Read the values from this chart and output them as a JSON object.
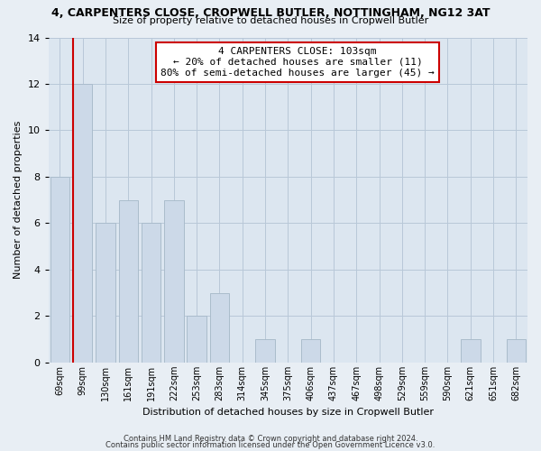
{
  "title": "4, CARPENTERS CLOSE, CROPWELL BUTLER, NOTTINGHAM, NG12 3AT",
  "subtitle": "Size of property relative to detached houses in Cropwell Butler",
  "xlabel": "Distribution of detached houses by size in Cropwell Butler",
  "ylabel": "Number of detached properties",
  "footer_line1": "Contains HM Land Registry data © Crown copyright and database right 2024.",
  "footer_line2": "Contains public sector information licensed under the Open Government Licence v3.0.",
  "bar_labels": [
    "69sqm",
    "99sqm",
    "130sqm",
    "161sqm",
    "191sqm",
    "222sqm",
    "253sqm",
    "283sqm",
    "314sqm",
    "345sqm",
    "375sqm",
    "406sqm",
    "437sqm",
    "467sqm",
    "498sqm",
    "529sqm",
    "559sqm",
    "590sqm",
    "621sqm",
    "651sqm",
    "682sqm"
  ],
  "bar_values": [
    8,
    12,
    6,
    7,
    6,
    7,
    2,
    3,
    0,
    1,
    0,
    1,
    0,
    0,
    0,
    0,
    0,
    0,
    1,
    0,
    1
  ],
  "bar_color": "#ccd9e8",
  "bar_edge_color": "#aabccc",
  "vline_color": "#cc0000",
  "ylim": [
    0,
    14
  ],
  "yticks": [
    0,
    2,
    4,
    6,
    8,
    10,
    12,
    14
  ],
  "annotation_text": "4 CARPENTERS CLOSE: 103sqm\n← 20% of detached houses are smaller (11)\n80% of semi-detached houses are larger (45) →",
  "annotation_box_edge": "#cc0000",
  "bg_color": "#e8eef4",
  "plot_bg_color": "#dce6f0",
  "grid_color": "#b8c8d8",
  "title_fontsize": 9.0,
  "subtitle_fontsize": 8.0
}
